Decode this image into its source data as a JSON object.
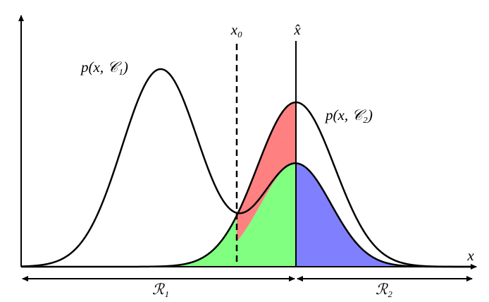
{
  "curves": [
    {
      "label": "p(x, 𝒞₁)"
    },
    {
      "label": "p(x, 𝒞₂)"
    }
  ],
  "markers": [
    {
      "label": "x₀"
    },
    {
      "label": "x̂"
    }
  ],
  "axis": {
    "x_label": "x"
  },
  "regions": [
    {
      "label": "ℛ₁"
    },
    {
      "label": "ℛ₂"
    }
  ]
}
